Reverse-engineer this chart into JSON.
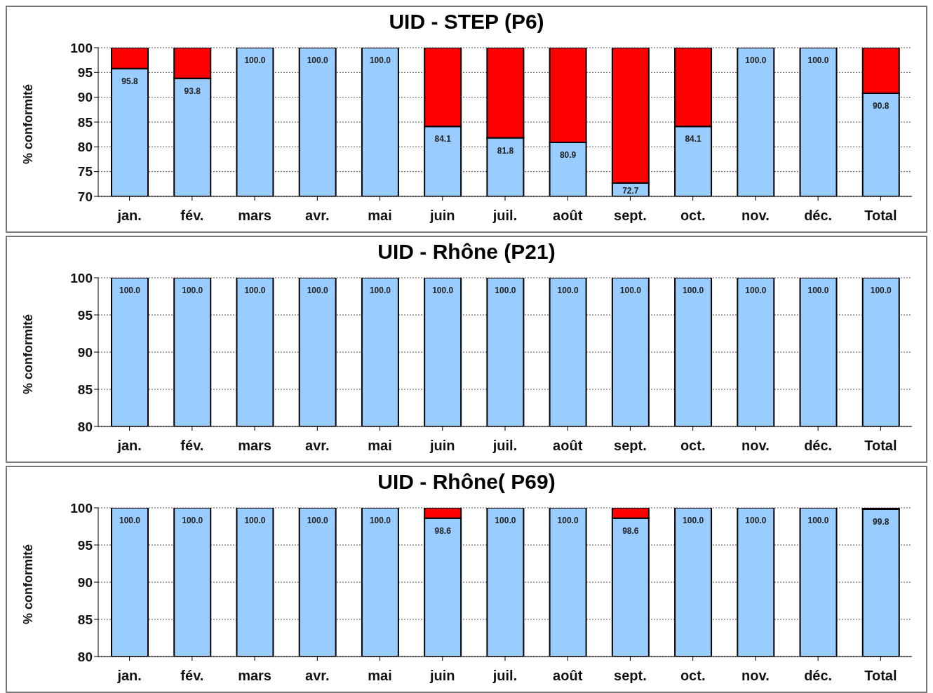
{
  "chart_data": [
    {
      "type": "bar",
      "title": "UID - STEP (P6)",
      "ylabel": "% conformité",
      "categories": [
        "jan.",
        "fév.",
        "mars",
        "avr.",
        "mai",
        "juin",
        "juil.",
        "août",
        "sept.",
        "oct.",
        "nov.",
        "déc.",
        "Total"
      ],
      "stacked": true,
      "ylim": [
        70,
        100
      ],
      "yticks": [
        70,
        75,
        80,
        85,
        90,
        95,
        100
      ],
      "grid": "y",
      "series": [
        {
          "color": "#99ccff",
          "values": [
            95.8,
            93.8,
            100.0,
            100.0,
            100.0,
            84.1,
            81.8,
            80.9,
            72.7,
            84.1,
            100.0,
            100.0,
            90.8
          ],
          "value_labels": [
            "95.8",
            "93.8",
            "100.0",
            "100.0",
            "100.0",
            "84.1",
            "81.8",
            "80.9",
            "72.7",
            "84.1",
            "100.0",
            "100.0",
            "90.8"
          ]
        },
        {
          "color": "#ff0000",
          "base": [
            95.8,
            93.8,
            null,
            null,
            null,
            84.1,
            81.8,
            80.9,
            72.7,
            84.1,
            null,
            null,
            90.8
          ],
          "values": [
            4.2,
            6.2,
            null,
            null,
            null,
            15.9,
            18.2,
            19.1,
            27.3,
            15.9,
            null,
            null,
            9.2
          ]
        }
      ]
    },
    {
      "type": "bar",
      "title": "UID - Rhône (P21)",
      "ylabel": "% conformité",
      "categories": [
        "jan.",
        "fév.",
        "mars",
        "avr.",
        "mai",
        "juin",
        "juil.",
        "août",
        "sept.",
        "oct.",
        "nov.",
        "déc.",
        "Total"
      ],
      "ylim": [
        80,
        100
      ],
      "yticks": [
        80,
        85,
        90,
        95,
        100
      ],
      "grid": "y",
      "series": [
        {
          "color": "#99ccff",
          "values": [
            100.0,
            100.0,
            100.0,
            100.0,
            100.0,
            100.0,
            100.0,
            100.0,
            100.0,
            100.0,
            100.0,
            100.0,
            100.0
          ],
          "value_labels": [
            "100.0",
            "100.0",
            "100.0",
            "100.0",
            "100.0",
            "100.0",
            "100.0",
            "100.0",
            "100.0",
            "100.0",
            "100.0",
            "100.0",
            "100.0"
          ]
        }
      ]
    },
    {
      "type": "bar",
      "title": "UID - Rhône( P69)",
      "ylabel": "% conformité",
      "categories": [
        "jan.",
        "fév.",
        "mars",
        "avr.",
        "mai",
        "juin",
        "juil.",
        "août",
        "sept.",
        "oct.",
        "nov.",
        "déc.",
        "Total"
      ],
      "stacked": true,
      "ylim": [
        80,
        100
      ],
      "yticks": [
        80,
        85,
        90,
        95,
        100
      ],
      "grid": "y",
      "series": [
        {
          "color": "#99ccff",
          "values": [
            100.0,
            100.0,
            100.0,
            100.0,
            100.0,
            98.6,
            100.0,
            100.0,
            98.6,
            100.0,
            100.0,
            100.0,
            99.8
          ],
          "value_labels": [
            "100.0",
            "100.0",
            "100.0",
            "100.0",
            "100.0",
            "98.6",
            "100.0",
            "100.0",
            "98.6",
            "100.0",
            "100.0",
            "100.0",
            "99.8"
          ]
        },
        {
          "color": "#ff0000",
          "base": [
            null,
            null,
            null,
            null,
            null,
            98.6,
            null,
            null,
            98.6,
            null,
            null,
            null,
            99.8
          ],
          "values": [
            null,
            null,
            null,
            null,
            null,
            1.4,
            null,
            null,
            1.4,
            null,
            null,
            null,
            0.2
          ]
        }
      ]
    }
  ]
}
